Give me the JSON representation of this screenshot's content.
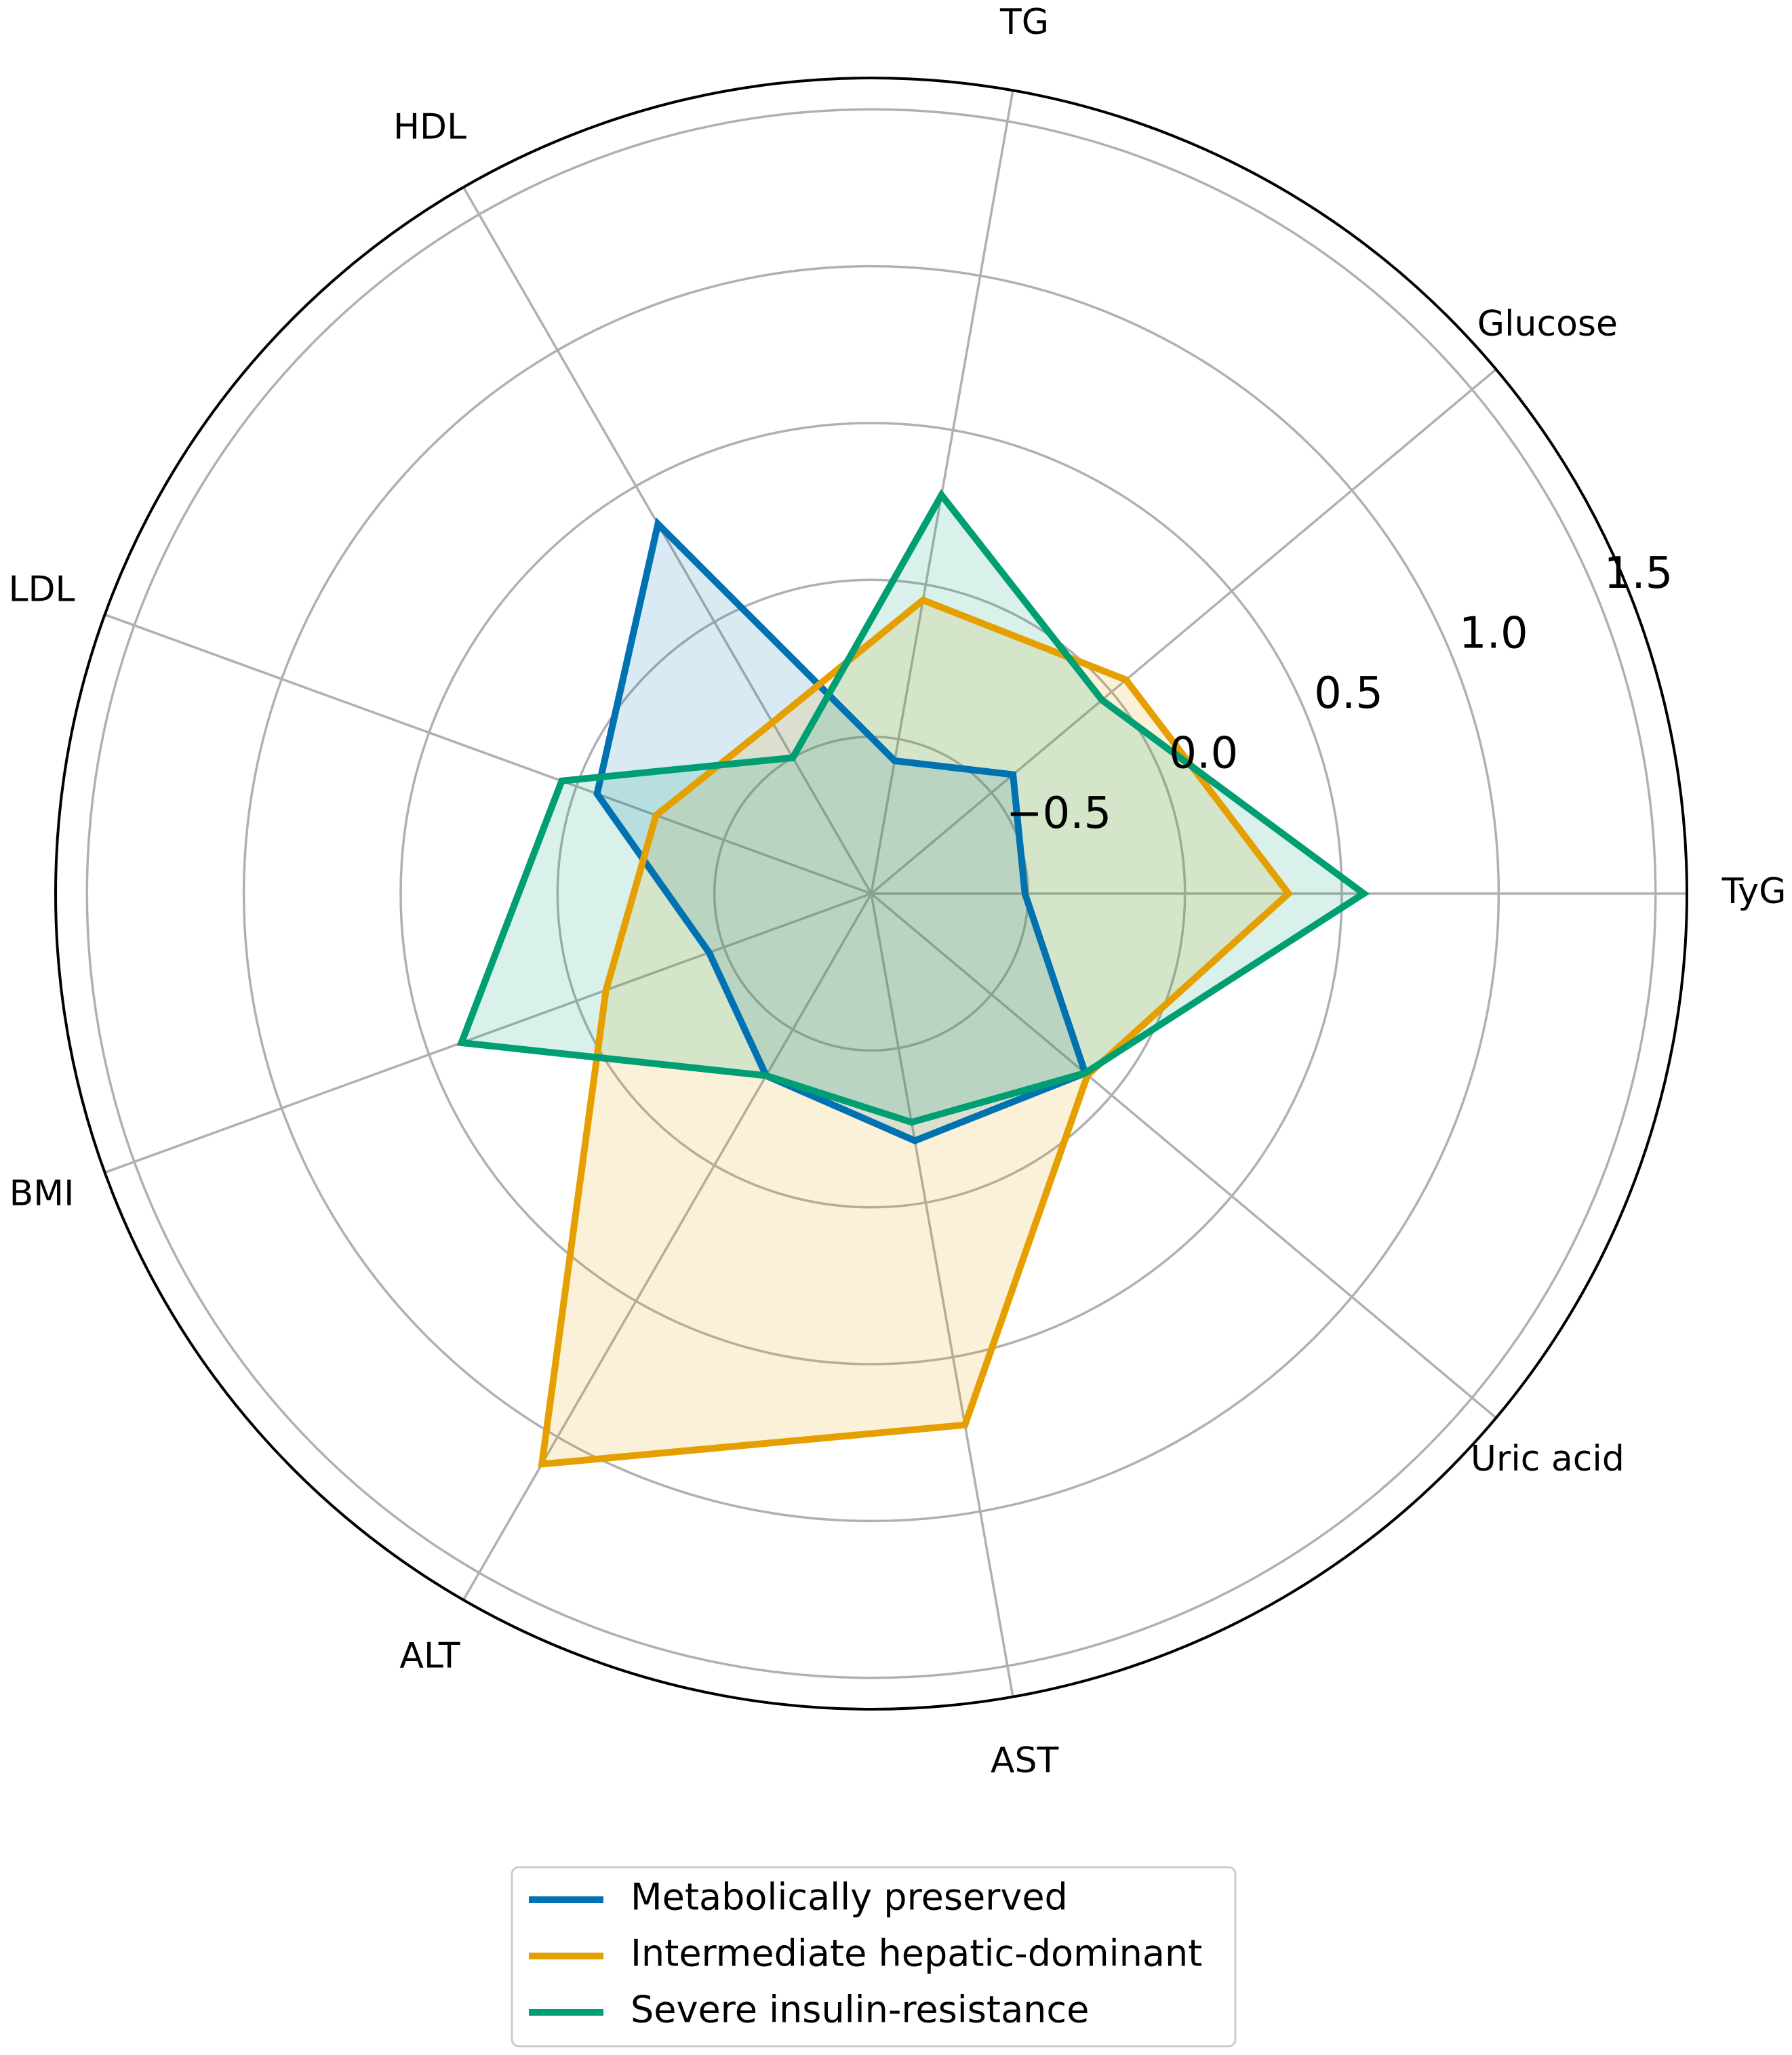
{
  "chart_data": {
    "type": "radar",
    "categories": [
      "TyG",
      "Glucose",
      "TG",
      "HDL",
      "LDL",
      "BMI",
      "ALT",
      "AST",
      "Uric acid"
    ],
    "series": [
      {
        "name": "Metabolically preserved",
        "color": "#0072b2",
        "values": [
          -0.51,
          -0.41,
          -0.57,
          0.36,
          -0.07,
          -0.45,
          -0.33,
          -0.2,
          -0.11
        ]
      },
      {
        "name": "Intermediate hepatic-dominant",
        "color": "#e69f00",
        "values": [
          0.33,
          0.06,
          -0.05,
          -0.37,
          -0.27,
          -0.1,
          1.1,
          0.72,
          -0.1
        ]
      },
      {
        "name": "Severe insulin-resistance",
        "color": "#009e73",
        "values": [
          0.57,
          -0.04,
          0.29,
          -0.5,
          0.05,
          0.39,
          -0.33,
          -0.26,
          -0.11
        ]
      }
    ],
    "ylim": [
      -1.0,
      1.6
    ],
    "yticks": [
      {
        "value": -0.5,
        "label": "−0.5"
      },
      {
        "value": 0.0,
        "label": "0.0"
      },
      0.5,
      {
        "value": 1.0,
        "label": "1.0"
      },
      1.5
    ],
    "grid": true,
    "legend": "bottom"
  }
}
